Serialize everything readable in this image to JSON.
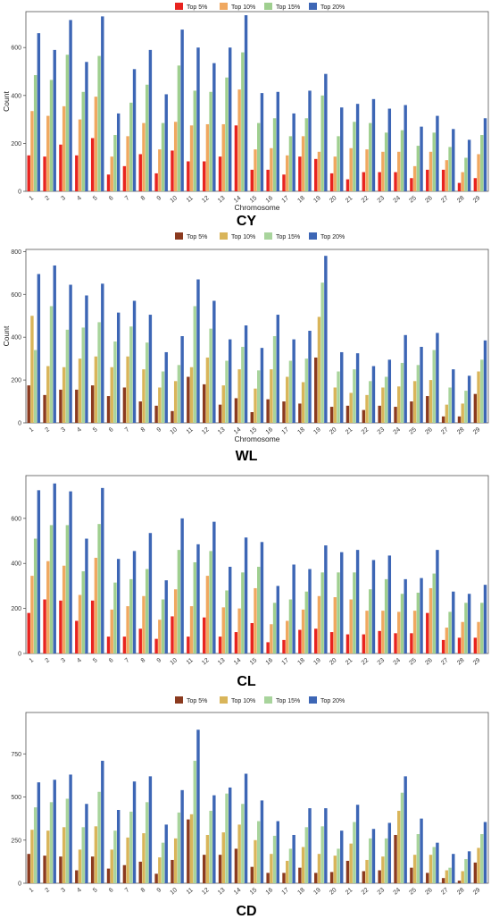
{
  "chart_data": [
    {
      "type": "bar",
      "caption": "CY",
      "xlabel": "Chromosome",
      "ylabel": "Count",
      "ylim": [
        0,
        750
      ],
      "yticks": [
        0,
        200,
        400,
        600
      ],
      "legend_position": "top",
      "grid": false,
      "categories": [
        "1",
        "2",
        "3",
        "4",
        "5",
        "6",
        "7",
        "8",
        "9",
        "10",
        "11",
        "12",
        "13",
        "14",
        "15",
        "16",
        "17",
        "18",
        "19",
        "20",
        "21",
        "22",
        "23",
        "24",
        "25",
        "26",
        "27",
        "28",
        "29"
      ],
      "series": [
        {
          "name": "Top 5%",
          "color": "#e8231f",
          "values": [
            150,
            145,
            195,
            150,
            222,
            70,
            105,
            155,
            75,
            170,
            125,
            125,
            145,
            275,
            90,
            90,
            70,
            145,
            135,
            75,
            50,
            80,
            80,
            80,
            55,
            90,
            90,
            35,
            55
          ]
        },
        {
          "name": "Top 10%",
          "color": "#f0a860",
          "values": [
            335,
            315,
            355,
            300,
            395,
            145,
            230,
            285,
            175,
            290,
            275,
            280,
            280,
            425,
            175,
            180,
            150,
            230,
            165,
            145,
            180,
            175,
            165,
            165,
            105,
            165,
            130,
            80,
            155
          ]
        },
        {
          "name": "Top 15%",
          "color": "#9fcf8f",
          "values": [
            485,
            465,
            570,
            415,
            565,
            235,
            370,
            445,
            285,
            525,
            420,
            415,
            475,
            580,
            285,
            305,
            230,
            305,
            400,
            230,
            290,
            285,
            245,
            255,
            190,
            245,
            185,
            140,
            235
          ]
        },
        {
          "name": "Top 20%",
          "color": "#3d66b5",
          "values": [
            660,
            590,
            715,
            540,
            730,
            325,
            510,
            590,
            405,
            675,
            600,
            535,
            600,
            735,
            410,
            415,
            325,
            420,
            490,
            350,
            365,
            385,
            345,
            360,
            270,
            315,
            260,
            215,
            305
          ]
        }
      ]
    },
    {
      "type": "bar",
      "caption": "WL",
      "xlabel": "Chromosome",
      "ylabel": "Count",
      "ylim": [
        0,
        810
      ],
      "yticks": [
        0,
        200,
        400,
        600,
        800
      ],
      "legend_position": "top",
      "grid": false,
      "categories": [
        "1",
        "2",
        "3",
        "4",
        "5",
        "6",
        "7",
        "8",
        "9",
        "10",
        "11",
        "12",
        "13",
        "14",
        "15",
        "16",
        "17",
        "18",
        "19",
        "20",
        "21",
        "22",
        "23",
        "24",
        "25",
        "26",
        "27",
        "28",
        "29"
      ],
      "series": [
        {
          "name": "Top 5%",
          "color": "#8b3a1f",
          "values": [
            175,
            130,
            155,
            155,
            175,
            125,
            165,
            100,
            80,
            55,
            215,
            180,
            85,
            115,
            50,
            110,
            100,
            90,
            305,
            75,
            80,
            60,
            80,
            75,
            100,
            125,
            30,
            30,
            135
          ]
        },
        {
          "name": "Top 10%",
          "color": "#d9b55a",
          "values": [
            500,
            265,
            260,
            300,
            310,
            260,
            310,
            250,
            165,
            195,
            260,
            305,
            175,
            250,
            160,
            250,
            215,
            190,
            495,
            165,
            140,
            130,
            165,
            170,
            195,
            200,
            85,
            90,
            240
          ]
        },
        {
          "name": "Top 15%",
          "color": "#a8d49c",
          "values": [
            340,
            545,
            435,
            445,
            470,
            380,
            450,
            375,
            240,
            270,
            545,
            440,
            290,
            355,
            245,
            405,
            290,
            300,
            655,
            240,
            250,
            195,
            215,
            280,
            270,
            340,
            165,
            150,
            295
          ]
        },
        {
          "name": "Top 20%",
          "color": "#3d66b5",
          "values": [
            695,
            735,
            645,
            595,
            650,
            515,
            570,
            505,
            330,
            405,
            670,
            570,
            390,
            455,
            350,
            505,
            390,
            430,
            780,
            330,
            325,
            265,
            295,
            410,
            355,
            420,
            250,
            220,
            385
          ]
        }
      ]
    },
    {
      "type": "bar",
      "caption": "CL",
      "xlabel": "",
      "ylabel": "",
      "ylim": [
        0,
        790
      ],
      "yticks": [
        0,
        200,
        400,
        600
      ],
      "legend_position": "none",
      "grid": false,
      "categories": [
        "1",
        "2",
        "3",
        "4",
        "5",
        "6",
        "7",
        "8",
        "9",
        "10",
        "11",
        "12",
        "13",
        "14",
        "15",
        "16",
        "17",
        "18",
        "19",
        "20",
        "21",
        "22",
        "23",
        "24",
        "25",
        "26",
        "27",
        "28",
        "29"
      ],
      "series": [
        {
          "name": "Top 5%",
          "color": "#e8231f",
          "values": [
            180,
            240,
            235,
            145,
            235,
            75,
            75,
            110,
            65,
            165,
            75,
            160,
            75,
            95,
            135,
            50,
            60,
            105,
            110,
            95,
            85,
            85,
            100,
            90,
            90,
            180,
            60,
            70,
            70
          ]
        },
        {
          "name": "Top 10%",
          "color": "#f0a860",
          "values": [
            345,
            410,
            390,
            260,
            425,
            195,
            210,
            255,
            150,
            285,
            210,
            345,
            205,
            200,
            290,
            130,
            145,
            195,
            255,
            250,
            240,
            190,
            190,
            185,
            190,
            290,
            115,
            140,
            140
          ]
        },
        {
          "name": "Top 15%",
          "color": "#9fcf8f",
          "values": [
            510,
            570,
            570,
            365,
            575,
            315,
            330,
            375,
            240,
            460,
            405,
            455,
            280,
            360,
            385,
            225,
            240,
            275,
            360,
            360,
            360,
            285,
            330,
            265,
            270,
            355,
            185,
            225,
            225
          ]
        },
        {
          "name": "Top 20%",
          "color": "#3d66b5",
          "values": [
            725,
            755,
            720,
            510,
            735,
            420,
            455,
            535,
            325,
            600,
            485,
            585,
            385,
            515,
            495,
            300,
            395,
            375,
            480,
            450,
            460,
            415,
            435,
            330,
            335,
            460,
            275,
            265,
            305
          ]
        }
      ]
    },
    {
      "type": "bar",
      "caption": "CD",
      "xlabel": "",
      "ylabel": "",
      "ylim": [
        0,
        990
      ],
      "yticks": [
        0,
        250,
        500,
        750
      ],
      "legend_position": "top",
      "grid": false,
      "categories": [
        "1",
        "2",
        "3",
        "4",
        "5",
        "6",
        "7",
        "8",
        "9",
        "10",
        "11",
        "12",
        "13",
        "14",
        "15",
        "16",
        "17",
        "18",
        "19",
        "20",
        "21",
        "22",
        "23",
        "24",
        "25",
        "26",
        "27",
        "28",
        "29"
      ],
      "series": [
        {
          "name": "Top 5%",
          "color": "#8b3a1f",
          "values": [
            170,
            160,
            155,
            75,
            155,
            85,
            105,
            125,
            55,
            135,
            370,
            165,
            165,
            200,
            95,
            60,
            60,
            90,
            60,
            65,
            130,
            70,
            75,
            280,
            90,
            60,
            30,
            15,
            120
          ]
        },
        {
          "name": "Top 10%",
          "color": "#d9b55a",
          "values": [
            310,
            305,
            325,
            195,
            330,
            195,
            265,
            290,
            150,
            260,
            400,
            280,
            295,
            340,
            250,
            170,
            130,
            210,
            170,
            160,
            230,
            135,
            155,
            420,
            165,
            165,
            75,
            70,
            205
          ]
        },
        {
          "name": "Top 15%",
          "color": "#a8d49c",
          "values": [
            440,
            470,
            490,
            325,
            530,
            305,
            415,
            470,
            235,
            410,
            710,
            420,
            520,
            460,
            360,
            275,
            200,
            325,
            330,
            200,
            355,
            260,
            260,
            525,
            285,
            210,
            90,
            140,
            285
          ]
        },
        {
          "name": "Top 20%",
          "color": "#3d66b5",
          "values": [
            585,
            600,
            630,
            460,
            710,
            425,
            590,
            620,
            340,
            540,
            890,
            510,
            555,
            635,
            480,
            360,
            280,
            435,
            435,
            305,
            455,
            315,
            350,
            620,
            375,
            235,
            170,
            185,
            355
          ]
        }
      ]
    }
  ]
}
